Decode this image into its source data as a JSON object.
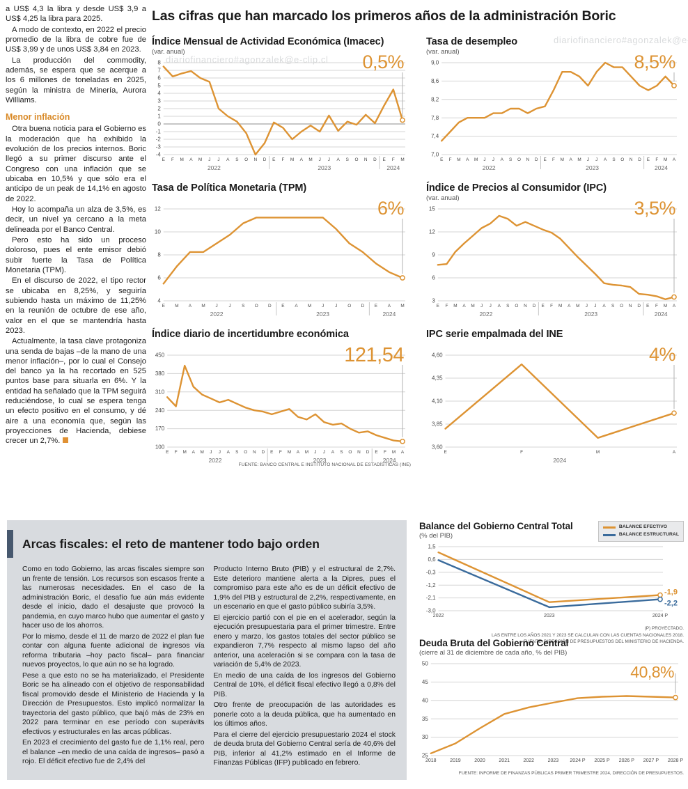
{
  "watermark": "diariofinanciero#agonzalek@e-clip.cl",
  "headline": "Las cifras que han marcado los primeros años de la administración Boric",
  "source_note": "FUENTE: BANCO CENTRAL E INSTITUTO NACIONAL DE ESTADÍSTICAS (INE)",
  "colors": {
    "accent_orange": "#DD9333",
    "line_blue": "#3A6B9C",
    "gray_box": "#D8DBDF",
    "dark_bar": "#47586E"
  },
  "left_article": {
    "paragraphs": [
      "a US$ 4,3 la libra y desde US$ 3,9 a US$ 4,25 la libra para 2025.",
      "A modo de contexto, en 2022 el precio promedio de la libra de cobre fue de US$ 3,99 y de unos US$ 3,84 en 2023.",
      "La producción del commodity, además, se espera que se acerque a los 6 millones de toneladas en 2025, según la ministra de Minería, Aurora Williams."
    ],
    "subhead": "Menor inflación",
    "paragraphs2": [
      "Otra buena noticia para el Gobierno es la moderación que ha exhibido la evolución de los precios internos. Boric llegó a su primer discurso ante el Congreso con una inflación que se ubicaba en 10,5% y que sólo era el anticipo de un peak de 14,1% en agosto de 2022.",
      "Hoy lo acompaña un alza de 3,5%, es decir, un nivel ya cercano a la meta delineada por el Banco Central.",
      "Pero esto ha sido un proceso doloroso, pues el ente emisor debió subir fuerte la Tasa de Política Monetaria (TPM).",
      "En el discurso de 2022, el tipo rector se ubicaba en 8,25%, y seguiría subiendo hasta un máximo de 11,25% en la reunión de octubre de ese año, valor en el que se mantendría hasta 2023.",
      "Actualmente, la tasa clave protagoniza una senda de bajas –de la mano de una menor inflación–, por lo cual el Consejo del banco ya la ha recortado en 525 puntos base para situarla en 6%. Y la entidad ha señalado que la TPM seguirá reduciéndose, lo cual se espera tenga un efecto positivo en el consumo, y dé aire a una economía que, según las proyecciones de Hacienda, debiese crecer un 2,7%."
    ]
  },
  "fiscal_section": {
    "title": "Arcas fiscales: el reto de mantener todo bajo orden",
    "col1": [
      "Como en todo Gobierno, las arcas fiscales siempre son un frente de tensión. Los recursos son escasos frente a las numerosas necesidades. En el caso de la administración Boric, el desafío fue aún más evidente desde el inicio, dado el desajuste que provocó la pandemia, en cuyo marco hubo que aumentar el gasto y hacer uso de los ahorros.",
      "Por lo mismo, desde el 11 de marzo de 2022 el plan fue contar con alguna fuente adicional de ingresos vía reforma tributaria –hoy pacto fiscal– para financiar nuevos proyectos, lo que aún no se ha logrado.",
      "Pese a que esto no se ha materializado, el Presidente Boric se ha alineado con el objetivo de responsabilidad fiscal promovido desde el Ministerio de Hacienda y la Dirección de Presupuestos. Esto implicó normalizar la trayectoria del gasto público, que bajó más de 23% en 2022 para terminar en ese período con superávits efectivos y estructurales en las arcas públicas.",
      "En 2023 el crecimiento del gasto fue de 1,1% real, pero el balance –en medio de una caída de ingresos– pasó a rojo. El déficit efectivo fue de 2,4% del"
    ],
    "col2": [
      "Producto Interno Bruto (PIB) y el estructural de 2,7%. Este deterioro mantiene alerta a la Dipres, pues el compromiso para este año es de un déficit efectivo de 1,9% del PIB y estructural de 2,2%, respectivamente, en un escenario en que el gasto público subiría 3,5%.",
      "El ejercicio partió con el pie en el acelerador, según la ejecución presupuestaria para el primer trimestre. Entre enero y marzo, los gastos totales del sector público se expandieron 7,7% respecto al mismo lapso del año anterior, una aceleración si se compara con la tasa de variación de 5,4% de 2023.",
      "En medio de una caída de los ingresos del Gobierno Central de 10%, el déficit fiscal efectivo llegó a 0,8% del PIB.",
      "Otro frente de preocupación de las autoridades es ponerle coto a la deuda pública, que ha aumentado en los últimos años.",
      "Para el cierre del ejercicio presupuestario 2024 el stock de deuda bruta del Gobierno Central sería de 40,6% del PIB, inferior al 41,2% estimado en el Informe de Finanzas Públicas (IFP) publicado en febrero."
    ]
  },
  "chart_data": [
    {
      "type": "line",
      "h": 162,
      "pointer": true,
      "title": "Índice Mensual de Actividad Económica (Imacec)",
      "subtitle": "(var. anual)",
      "big_label": "0,5%",
      "ylim": [
        -4,
        8
      ],
      "ytick_values": [
        8,
        7,
        6,
        5,
        4,
        3,
        2,
        1,
        0,
        -1,
        -2,
        -3,
        -4
      ],
      "ytick_labels": [
        "8",
        "7",
        "6",
        "5",
        "4",
        "3",
        "2",
        "1",
        "0",
        "-1",
        "-2",
        "-3",
        "-4"
      ],
      "x": [
        "E",
        "F",
        "M",
        "A",
        "M",
        "J",
        "J",
        "A",
        "S",
        "O",
        "N",
        "D",
        "E",
        "F",
        "M",
        "A",
        "M",
        "J",
        "J",
        "A",
        "S",
        "O",
        "N",
        "D",
        "E",
        "F",
        "M"
      ],
      "years": [
        {
          "label": "2022",
          "from": 0,
          "to": 11
        },
        {
          "label": "2023",
          "from": 12,
          "to": 23
        },
        {
          "label": "2024",
          "from": 24,
          "to": 26
        }
      ],
      "series": [
        {
          "name": "Imacec",
          "color": "#DD9333",
          "values": [
            7.5,
            6.2,
            6.6,
            6.9,
            6.0,
            5.5,
            2.0,
            1.0,
            0.3,
            -1.2,
            -4.0,
            -2.5,
            0.2,
            -0.5,
            -2.0,
            -1.0,
            -0.2,
            -1.0,
            1.1,
            -0.9,
            0.3,
            -0.1,
            1.2,
            0.1,
            2.4,
            4.5,
            0.5
          ]
        }
      ]
    },
    {
      "type": "line",
      "h": 162,
      "pointer": true,
      "title": "Tasa de desempleo",
      "subtitle": "(var. anual)",
      "big_label": "8,5%",
      "ylim": [
        7.0,
        9.0
      ],
      "ytick_values": [
        9.0,
        8.6,
        8.2,
        7.8,
        7.4,
        7.0
      ],
      "ytick_labels": [
        "9,0",
        "8,6",
        "8,2",
        "7,8",
        "7,4",
        "7,0"
      ],
      "x": [
        "E",
        "F",
        "M",
        "A",
        "M",
        "J",
        "J",
        "A",
        "S",
        "O",
        "N",
        "D",
        "E",
        "F",
        "M",
        "A",
        "M",
        "J",
        "J",
        "A",
        "S",
        "O",
        "N",
        "D",
        "E",
        "F",
        "M",
        "A"
      ],
      "years": [
        {
          "label": "2022",
          "from": 0,
          "to": 11
        },
        {
          "label": "2023",
          "from": 12,
          "to": 23
        },
        {
          "label": "2024",
          "from": 24,
          "to": 27
        }
      ],
      "series": [
        {
          "name": "Desempleo",
          "color": "#DD9333",
          "values": [
            7.3,
            7.5,
            7.7,
            7.8,
            7.8,
            7.8,
            7.9,
            7.9,
            8.0,
            8.0,
            7.9,
            8.0,
            8.05,
            8.4,
            8.8,
            8.8,
            8.7,
            8.5,
            8.8,
            9.0,
            8.9,
            8.9,
            8.7,
            8.5,
            8.4,
            8.5,
            8.7,
            8.5
          ]
        }
      ]
    },
    {
      "type": "line",
      "h": 162,
      "pointer": true,
      "title": "Tasa de Política Monetaria (TPM)",
      "subtitle": "",
      "big_label": "6%",
      "ylim": [
        4,
        12
      ],
      "ytick_values": [
        12,
        10,
        8,
        6,
        4
      ],
      "ytick_labels": [
        "12",
        "10",
        "8",
        "6",
        "4"
      ],
      "x": [
        "E",
        "M",
        "A",
        "M",
        "J",
        "J",
        "S",
        "O",
        "D",
        "E",
        "A",
        "M",
        "J",
        "J",
        "O",
        "D",
        "E",
        "A",
        "M"
      ],
      "years": [
        {
          "label": "2022",
          "from": 0,
          "to": 8
        },
        {
          "label": "2023",
          "from": 9,
          "to": 15
        },
        {
          "label": "2024",
          "from": 16,
          "to": 18
        }
      ],
      "series": [
        {
          "name": "TPM",
          "color": "#DD9333",
          "values": [
            5.5,
            7.0,
            8.25,
            8.25,
            9.0,
            9.75,
            10.75,
            11.25,
            11.25,
            11.25,
            11.25,
            11.25,
            11.25,
            10.25,
            9.0,
            8.25,
            7.25,
            6.5,
            6.0
          ]
        }
      ]
    },
    {
      "type": "line",
      "h": 162,
      "pointer": true,
      "title": "Índice de Precios al Consumidor (IPC)",
      "subtitle": "(var. anual)",
      "big_label": "3,5%",
      "ylim": [
        3,
        15
      ],
      "ytick_values": [
        15,
        12,
        9,
        6,
        3
      ],
      "ytick_labels": [
        "15",
        "12",
        "9",
        "6",
        "3"
      ],
      "x": [
        "E",
        "F",
        "M",
        "A",
        "M",
        "J",
        "J",
        "A",
        "S",
        "O",
        "N",
        "D",
        "E",
        "F",
        "M",
        "A",
        "M",
        "J",
        "J",
        "A",
        "S",
        "O",
        "N",
        "D",
        "E",
        "F",
        "M",
        "A"
      ],
      "years": [
        {
          "label": "2022",
          "from": 0,
          "to": 11
        },
        {
          "label": "2023",
          "from": 12,
          "to": 23
        },
        {
          "label": "2024",
          "from": 24,
          "to": 27
        }
      ],
      "series": [
        {
          "name": "IPC",
          "color": "#DD9333",
          "values": [
            7.7,
            7.8,
            9.4,
            10.5,
            11.5,
            12.5,
            13.1,
            14.1,
            13.7,
            12.8,
            13.3,
            12.8,
            12.3,
            11.9,
            11.1,
            9.9,
            8.7,
            7.6,
            6.5,
            5.3,
            5.1,
            5.0,
            4.8,
            3.9,
            3.8,
            3.6,
            3.2,
            3.5
          ]
        }
      ]
    },
    {
      "type": "line",
      "h": 162,
      "pointer": true,
      "title": "Índice diario de incertidumbre económica",
      "subtitle": "",
      "big_label": "121,54",
      "ylim": [
        100,
        450
      ],
      "ytick_values": [
        450,
        380,
        310,
        240,
        170,
        100
      ],
      "ytick_labels": [
        "450",
        "380",
        "310",
        "240",
        "170",
        "100"
      ],
      "x": [
        "E",
        "F",
        "M",
        "A",
        "M",
        "J",
        "J",
        "A",
        "S",
        "O",
        "N",
        "D",
        "E",
        "F",
        "M",
        "A",
        "M",
        "J",
        "J",
        "A",
        "S",
        "O",
        "N",
        "D",
        "E",
        "F",
        "M",
        "A"
      ],
      "years": [
        {
          "label": "2022",
          "from": 0,
          "to": 11
        },
        {
          "label": "2023",
          "from": 12,
          "to": 23
        },
        {
          "label": "2024",
          "from": 24,
          "to": 27
        }
      ],
      "series": [
        {
          "name": "Incertidumbre",
          "color": "#DD9333",
          "values": [
            290,
            255,
            410,
            330,
            300,
            285,
            270,
            280,
            265,
            250,
            240,
            235,
            225,
            235,
            245,
            215,
            205,
            225,
            195,
            185,
            190,
            170,
            155,
            160,
            145,
            135,
            125,
            121.54
          ]
        }
      ]
    },
    {
      "type": "line",
      "h": 162,
      "pointer": true,
      "title": "IPC serie empalmada del INE",
      "subtitle": "",
      "big_label": "4%",
      "ylim": [
        3.6,
        4.6
      ],
      "ytick_values": [
        4.6,
        4.35,
        4.1,
        3.85,
        3.6
      ],
      "ytick_labels": [
        "4,60",
        "4,35",
        "4,10",
        "3,85",
        "3,60"
      ],
      "x": [
        "E",
        "F",
        "M",
        "A"
      ],
      "years": [
        {
          "label": "2024",
          "from": 0,
          "to": 3
        }
      ],
      "series": [
        {
          "name": "IPC empalmado",
          "color": "#DD9333",
          "values": [
            3.8,
            4.5,
            3.7,
            3.97
          ]
        }
      ]
    },
    {
      "type": "line",
      "h": 112,
      "pointer": false,
      "title": "Balance del Gobierno Central Total",
      "subtitle": "(% del PIB)",
      "legend": [
        "BALANCE EFECTIVO",
        "BALANCE ESTRUCTURAL"
      ],
      "ylim": [
        -3.0,
        1.5
      ],
      "ytick_values": [
        1.5,
        0.6,
        -0.3,
        -1.2,
        -2.1,
        -3.0
      ],
      "ytick_labels": [
        "1,5",
        "0,6",
        "-0,3",
        "-1,2",
        "-2,1",
        "-3,0"
      ],
      "x": [
        "2022",
        "2023",
        "2024 P"
      ],
      "end_labels": [
        "-1,9",
        "-2,2"
      ],
      "series": [
        {
          "name": "Balance efectivo",
          "color": "#DD9333",
          "values": [
            1.1,
            -2.4,
            -1.9
          ]
        },
        {
          "name": "Balance estructural",
          "color": "#3A6B9C",
          "values": [
            0.55,
            -2.75,
            -2.2
          ]
        }
      ],
      "footnotes": [
        "(P) PROYECTADO.",
        "LAS ENTRE LOS AÑOS 2021 Y 2023 SE CALCULAN CON LAS CUENTAS NACIONALES 2018.",
        "FUENTE: DIRECCIÓN DE PRESUPUESTOS DEL MINISTERIO DE HACIENDA."
      ]
    },
    {
      "type": "line",
      "h": 152,
      "pointer": true,
      "title": "Deuda Bruta del Gobierno Central",
      "subtitle": "(cierre al 31 de diciembre de cada año, % del PIB)",
      "big_label": "40,8%",
      "ylim": [
        25,
        50
      ],
      "ytick_values": [
        50,
        45,
        40,
        35,
        30,
        25
      ],
      "ytick_labels": [
        "50",
        "45",
        "40",
        "35",
        "30",
        "25"
      ],
      "x": [
        "2018",
        "2019",
        "2020",
        "2021",
        "2022",
        "2023",
        "2024 P",
        "2025 P",
        "2026 P",
        "2027 P",
        "2028 P"
      ],
      "series": [
        {
          "name": "Deuda bruta",
          "color": "#DD9333",
          "values": [
            25.6,
            28.3,
            32.4,
            36.3,
            38.1,
            39.4,
            40.6,
            41.0,
            41.2,
            41.0,
            40.8
          ]
        }
      ],
      "footnotes": [
        "FUENTE: INFORME DE FINANZAS PÚBLICAS PRIMER TRIMESTRE 2024, DIRECCIÓN DE PRESUPUESTOS."
      ]
    }
  ]
}
